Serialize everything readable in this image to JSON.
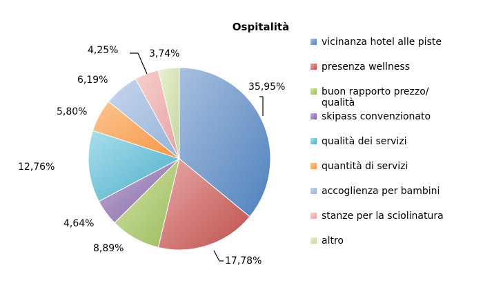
{
  "chart_data": {
    "type": "pie",
    "title": "Ospitalità",
    "legend_position": "right",
    "slices": [
      {
        "label": "vicinanza hotel alle piste",
        "value": 35.95,
        "value_label": "35,95%",
        "color": "#4F81BD",
        "color_light": "#A7C0DE"
      },
      {
        "label": "presenza wellness",
        "value": 17.78,
        "value_label": "17,78%",
        "color": "#C0504D",
        "color_light": "#E6A9A7"
      },
      {
        "label": "buon rapporto prezzo/\nqualità",
        "value": 8.89,
        "value_label": "8,89%",
        "color": "#9BBB59",
        "color_light": "#D3E3AE"
      },
      {
        "label": "skipass convenzionato",
        "value": 4.64,
        "value_label": "4,64%",
        "color": "#8064A2",
        "color_light": "#C3B2D6"
      },
      {
        "label": "qualità dei servizi",
        "value": 12.76,
        "value_label": "12,76%",
        "color": "#4BACC6",
        "color_light": "#A9DFEE"
      },
      {
        "label": "quantità di servizi",
        "value": 5.8,
        "value_label": "5,80%",
        "color": "#F79646",
        "color_light": "#FAC591"
      },
      {
        "label": "accoglienza per bambini",
        "value": 6.19,
        "value_label": "6,19%",
        "color": "#95B3D7",
        "color_light": "#C6D6EE"
      },
      {
        "label": "stanze per la sciolinatura",
        "value": 4.25,
        "value_label": "4,25%",
        "color": "#E6A4A3",
        "color_light": "#F7CFCF"
      },
      {
        "label": "altro",
        "value": 3.74,
        "value_label": "3,74%",
        "color": "#C3D69B",
        "color_light": "#E9F1D3"
      }
    ]
  }
}
